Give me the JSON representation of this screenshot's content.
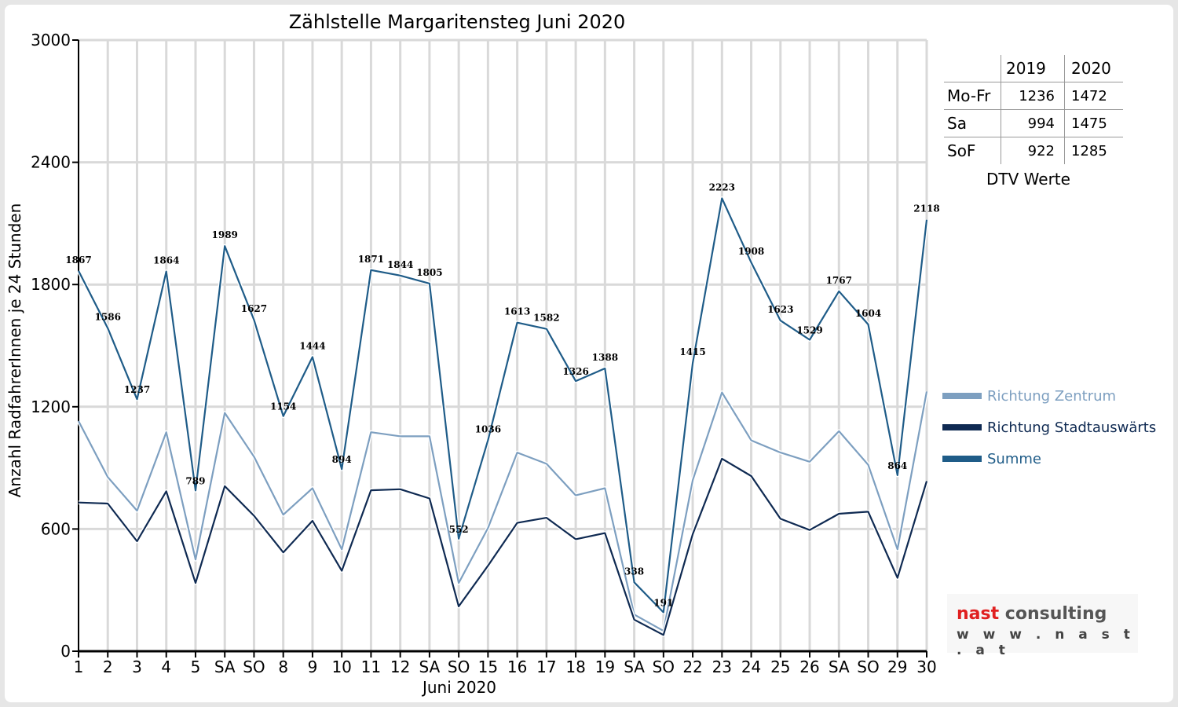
{
  "colors": {
    "zentrum": "#7d9fc0",
    "stadtauswaerts": "#0f2a52",
    "summe": "#1f5c88",
    "weekend_tick": "#ff0000",
    "grid": "#d9d9d9"
  },
  "chart_data": {
    "type": "line",
    "title": "Zählstelle Margaritensteg Juni 2020",
    "xlabel": "Juni 2020",
    "ylabel": "Anzahl RadfahrerInnen je 24 Stunden",
    "ylim": [
      0,
      3000
    ],
    "yticks": [
      "0",
      "600",
      "1200",
      "1800",
      "2400",
      "3000"
    ],
    "grid": true,
    "legend_position": "right",
    "categories": [
      "1",
      "2",
      "3",
      "4",
      "5",
      "SA",
      "SO",
      "8",
      "9",
      "10",
      "11",
      "12",
      "SA",
      "SO",
      "15",
      "16",
      "17",
      "18",
      "19",
      "SA",
      "SO",
      "22",
      "23",
      "24",
      "25",
      "26",
      "SA",
      "SO",
      "29",
      "30"
    ],
    "red_categories": [
      0,
      6,
      10,
      13,
      20,
      27
    ],
    "series": [
      {
        "name": "Richtung Zentrum",
        "values": [
          1130,
          855,
          690,
          1075,
          450,
          1170,
          955,
          670,
          800,
          500,
          1075,
          1055,
          1055,
          335,
          605,
          975,
          920,
          765,
          800,
          180,
          100,
          840,
          1270,
          1035,
          975,
          930,
          1080,
          915,
          500,
          1275
        ]
      },
      {
        "name": "Richtung Stadtauswärts",
        "values": [
          730,
          725,
          540,
          785,
          335,
          810,
          665,
          485,
          640,
          395,
          790,
          795,
          750,
          220,
          420,
          630,
          655,
          550,
          580,
          155,
          80,
          575,
          945,
          860,
          650,
          595,
          675,
          685,
          360,
          835
        ]
      },
      {
        "name": "Summe",
        "values": [
          1867,
          1586,
          1237,
          1864,
          789,
          1989,
          1627,
          1154,
          1444,
          894,
          1871,
          1844,
          1805,
          552,
          1036,
          1613,
          1582,
          1326,
          1388,
          338,
          191,
          1415,
          2223,
          1908,
          1623,
          1529,
          1767,
          1604,
          864,
          2118
        ]
      }
    ]
  },
  "dtv_table": {
    "headers": [
      "",
      "2019",
      "2020"
    ],
    "rows": [
      {
        "label": "Mo-Fr",
        "v2019": "1236",
        "v2020": "1472"
      },
      {
        "label": "Sa",
        "v2019": "994",
        "v2020": "1475"
      },
      {
        "label": "SoF",
        "v2019": "922",
        "v2020": "1285"
      }
    ],
    "caption": "DTV Werte"
  },
  "logo": {
    "name_a": "nast",
    "name_b": " consulting",
    "url": "w w w . n a s t . a t"
  }
}
